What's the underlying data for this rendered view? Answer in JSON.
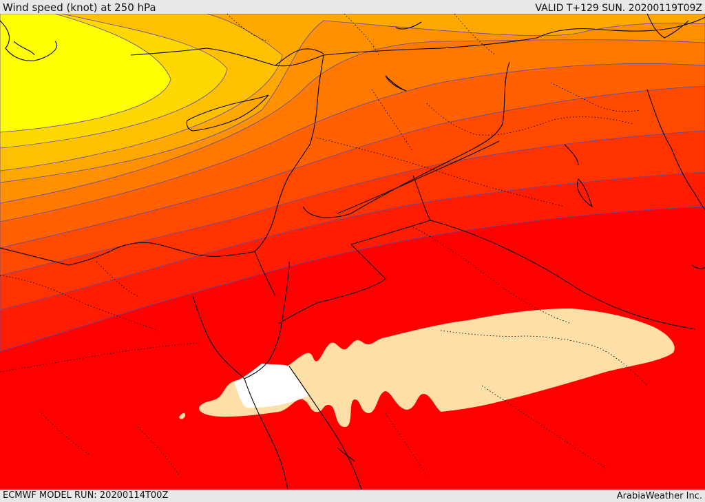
{
  "header": {
    "title": "Wind speed (knot) at 250 hPa",
    "valid": "VALID T+129 SUN. 20200119T09Z"
  },
  "footer": {
    "model_run": "ECMWF MODEL RUN: 20200114T00Z",
    "credit": "ArabiaWeather Inc."
  },
  "map": {
    "field": "wind speed",
    "level": "250 hPa",
    "unit": "knot",
    "band_colors": [
      "#ffff00",
      "#ffd800",
      "#ffc000",
      "#ffa800",
      "#ff9000",
      "#ff7800",
      "#ff6000",
      "#ff4a00",
      "#ff3300",
      "#ff1c00",
      "#ff0000",
      "#ffdfa8",
      "#ffffff"
    ],
    "contour_color": "#5a4aa8",
    "coastline_color": "#000000",
    "border_style": "dotted"
  }
}
